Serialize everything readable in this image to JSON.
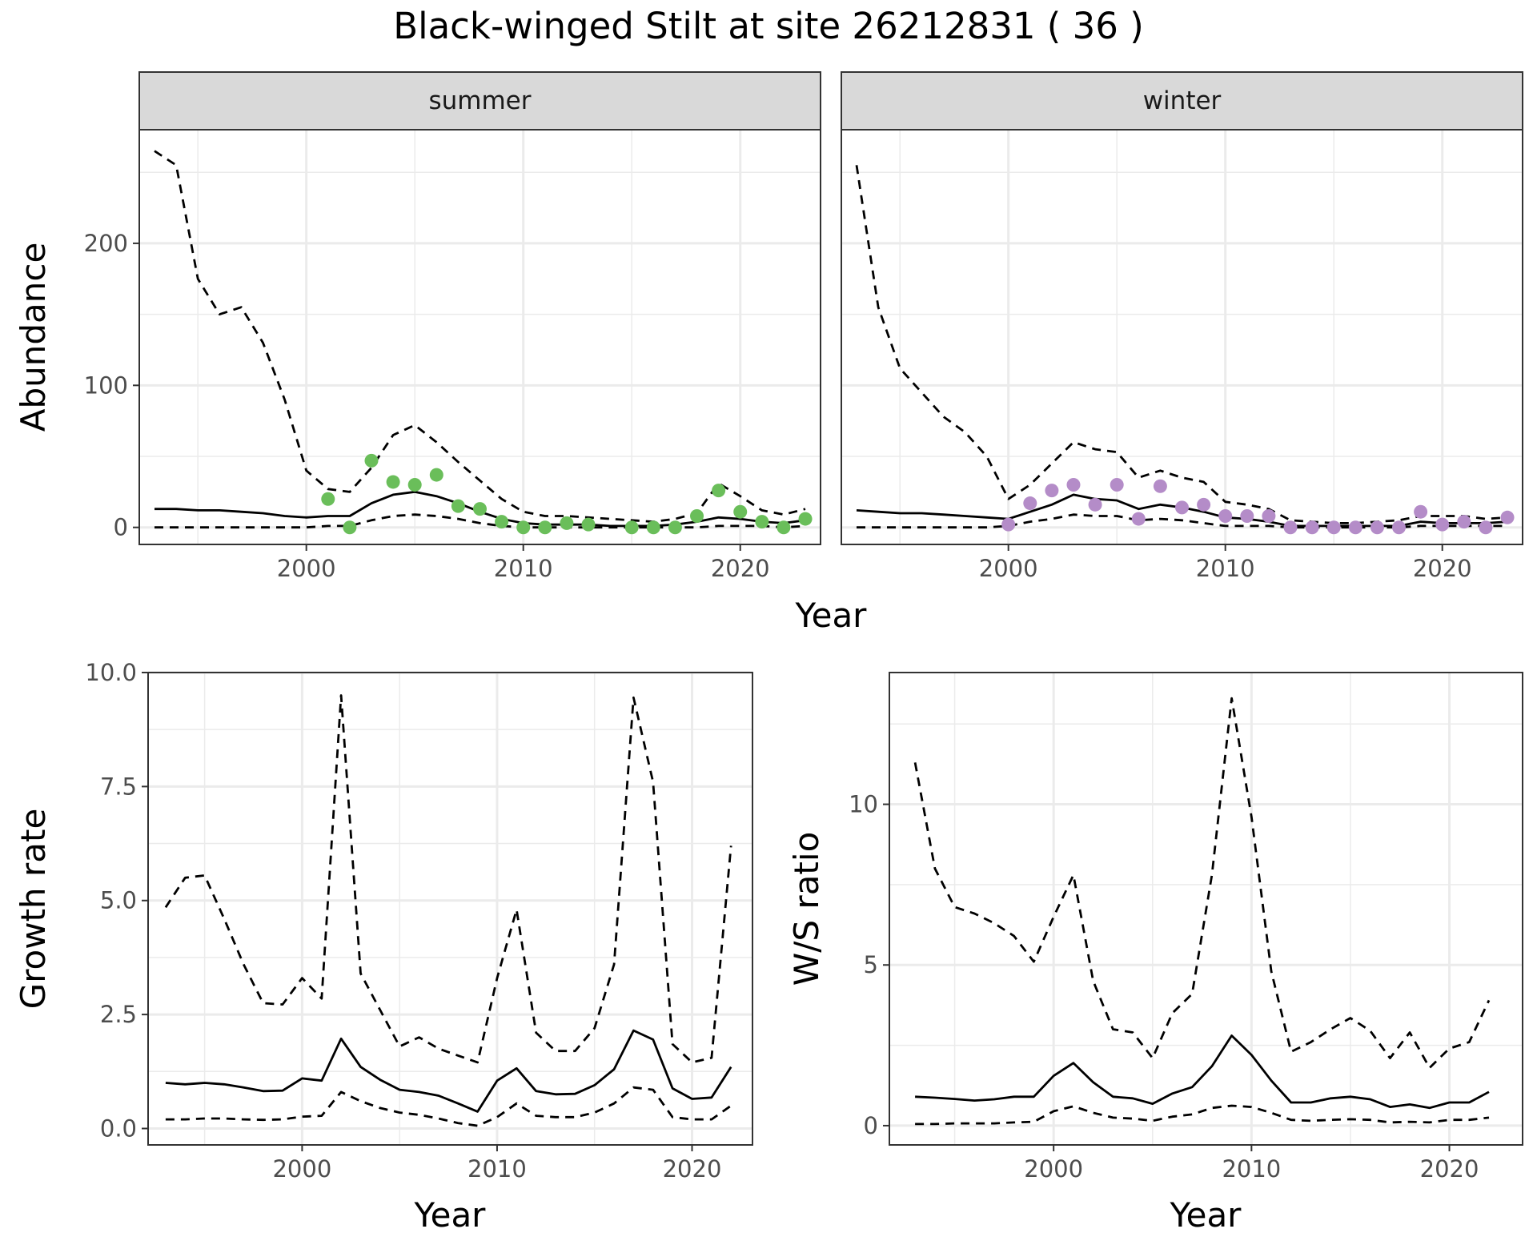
{
  "title": "Black-winged Stilt at site 26212831 ( 36 )",
  "colors": {
    "summer_points": "#6ABE5A",
    "winter_points": "#B48CC8",
    "line": "#000000",
    "strip": "#D9D9D9",
    "grid": "#EBEBEB"
  },
  "chart_data": [
    {
      "type": "line",
      "panel": "summer",
      "strip_label": "summer",
      "xlabel": "Year",
      "ylabel": "Abundance",
      "xlim": [
        1992.3,
        2023.7
      ],
      "ylim": [
        -12,
        280
      ],
      "xticks": [
        2000,
        2010,
        2020
      ],
      "yticks": [
        0,
        100,
        200
      ],
      "grid": true,
      "series": [
        {
          "role": "estimate",
          "style": "solid",
          "x": [
            1993,
            1994,
            1995,
            1996,
            1997,
            1998,
            1999,
            2000,
            2001,
            2002,
            2003,
            2004,
            2005,
            2006,
            2007,
            2008,
            2009,
            2010,
            2011,
            2012,
            2013,
            2014,
            2015,
            2016,
            2017,
            2018,
            2019,
            2020,
            2021,
            2022,
            2023
          ],
          "y": [
            13,
            13,
            12,
            12,
            11,
            10,
            8,
            7,
            8,
            8,
            17,
            23,
            25,
            22,
            17,
            11,
            6,
            3,
            2,
            2,
            2,
            1,
            1,
            1,
            2,
            4,
            7,
            6,
            4,
            3,
            5
          ]
        },
        {
          "role": "upper",
          "style": "dashed",
          "x": [
            1993,
            1994,
            1995,
            1996,
            1997,
            1998,
            1999,
            2000,
            2001,
            2002,
            2003,
            2004,
            2005,
            2006,
            2007,
            2008,
            2009,
            2010,
            2011,
            2012,
            2013,
            2014,
            2015,
            2016,
            2017,
            2018,
            2019,
            2020,
            2021,
            2022,
            2023
          ],
          "y": [
            265,
            255,
            175,
            150,
            155,
            130,
            90,
            40,
            27,
            25,
            42,
            65,
            72,
            60,
            46,
            33,
            20,
            11,
            8,
            8,
            7,
            6,
            5,
            4,
            6,
            10,
            31,
            22,
            12,
            9,
            13
          ]
        },
        {
          "role": "lower",
          "style": "dashed",
          "x": [
            1993,
            1994,
            1995,
            1996,
            1997,
            1998,
            1999,
            2000,
            2001,
            2002,
            2003,
            2004,
            2005,
            2006,
            2007,
            2008,
            2009,
            2010,
            2011,
            2012,
            2013,
            2014,
            2015,
            2016,
            2017,
            2018,
            2019,
            2020,
            2021,
            2022,
            2023
          ],
          "y": [
            0,
            0,
            0,
            0,
            0,
            0,
            0,
            0,
            1,
            1,
            5,
            8,
            9,
            8,
            6,
            3,
            1,
            0,
            0,
            0,
            0,
            0,
            0,
            0,
            0,
            0,
            1,
            1,
            1,
            0,
            1
          ]
        },
        {
          "role": "observed",
          "style": "points",
          "x": [
            2001,
            2002,
            2003,
            2004,
            2005,
            2006,
            2007,
            2008,
            2009,
            2010,
            2011,
            2012,
            2013,
            2015,
            2016,
            2017,
            2018,
            2019,
            2020,
            2021,
            2022,
            2023
          ],
          "y": [
            20,
            0,
            47,
            32,
            30,
            37,
            15,
            13,
            4,
            0,
            0,
            3,
            2,
            0,
            0,
            0,
            8,
            26,
            11,
            4,
            0,
            6
          ]
        }
      ]
    },
    {
      "type": "line",
      "panel": "winter",
      "strip_label": "winter",
      "xlabel": "Year",
      "ylabel": "Abundance",
      "xlim": [
        1992.3,
        2023.7
      ],
      "ylim": [
        -12,
        280
      ],
      "xticks": [
        2000,
        2010,
        2020
      ],
      "yticks": [
        0,
        100,
        200
      ],
      "grid": true,
      "series": [
        {
          "role": "estimate",
          "style": "solid",
          "x": [
            1993,
            1994,
            1995,
            1996,
            1997,
            1998,
            1999,
            2000,
            2001,
            2002,
            2003,
            2004,
            2005,
            2006,
            2007,
            2008,
            2009,
            2010,
            2011,
            2012,
            2013,
            2014,
            2015,
            2016,
            2017,
            2018,
            2019,
            2020,
            2021,
            2022,
            2023
          ],
          "y": [
            12,
            11,
            10,
            10,
            9,
            8,
            7,
            6,
            11,
            16,
            23,
            20,
            19,
            13,
            16,
            14,
            11,
            7,
            6,
            4,
            1,
            1,
            1,
            1,
            1,
            1,
            4,
            3,
            3,
            3,
            4
          ]
        },
        {
          "role": "upper",
          "style": "dashed",
          "x": [
            1993,
            1994,
            1995,
            1996,
            1997,
            1998,
            1999,
            2000,
            2001,
            2002,
            2003,
            2004,
            2005,
            2006,
            2007,
            2008,
            2009,
            2010,
            2011,
            2012,
            2013,
            2014,
            2015,
            2016,
            2017,
            2018,
            2019,
            2020,
            2021,
            2022,
            2023
          ],
          "y": [
            255,
            155,
            112,
            95,
            78,
            67,
            50,
            20,
            30,
            45,
            60,
            55,
            53,
            35,
            40,
            35,
            32,
            18,
            16,
            13,
            5,
            4,
            3,
            3,
            4,
            5,
            8,
            8,
            8,
            6,
            7
          ]
        },
        {
          "role": "lower",
          "style": "dashed",
          "x": [
            1993,
            1994,
            1995,
            1996,
            1997,
            1998,
            1999,
            2000,
            2001,
            2002,
            2003,
            2004,
            2005,
            2006,
            2007,
            2008,
            2009,
            2010,
            2011,
            2012,
            2013,
            2014,
            2015,
            2016,
            2017,
            2018,
            2019,
            2020,
            2021,
            2022,
            2023
          ],
          "y": [
            0,
            0,
            0,
            0,
            0,
            0,
            0,
            1,
            4,
            6,
            9,
            8,
            8,
            5,
            6,
            5,
            3,
            1,
            1,
            1,
            0,
            0,
            0,
            0,
            0,
            0,
            1,
            1,
            1,
            1,
            1
          ]
        },
        {
          "role": "observed",
          "style": "points",
          "x": [
            2000,
            2001,
            2002,
            2003,
            2004,
            2005,
            2006,
            2007,
            2008,
            2009,
            2010,
            2011,
            2012,
            2013,
            2014,
            2015,
            2016,
            2017,
            2018,
            2019,
            2020,
            2021,
            2022,
            2023
          ],
          "y": [
            2,
            17,
            26,
            30,
            16,
            30,
            6,
            29,
            14,
            16,
            8,
            8,
            8,
            0,
            0,
            0,
            0,
            0,
            0,
            11,
            2,
            4,
            0,
            7
          ]
        }
      ]
    },
    {
      "type": "line",
      "panel": "growth",
      "xlabel": "Year",
      "ylabel": "Growth rate",
      "xlim": [
        1992.1,
        2023.1
      ],
      "ylim": [
        -0.36,
        10.0
      ],
      "xticks": [
        2000,
        2010,
        2020
      ],
      "yticks": [
        0.0,
        2.5,
        5.0,
        7.5,
        10.0
      ],
      "ytick_labels": [
        "0.0",
        "2.5",
        "5.0",
        "7.5",
        "10.0"
      ],
      "grid": true,
      "series": [
        {
          "role": "estimate",
          "style": "solid",
          "x": [
            1993,
            1994,
            1995,
            1996,
            1997,
            1998,
            1999,
            2000,
            2001,
            2002,
            2003,
            2004,
            2005,
            2006,
            2007,
            2008,
            2009,
            2010,
            2011,
            2012,
            2013,
            2014,
            2015,
            2016,
            2017,
            2018,
            2019,
            2020,
            2021,
            2022
          ],
          "y": [
            1.0,
            0.97,
            1.0,
            0.97,
            0.9,
            0.82,
            0.83,
            1.1,
            1.05,
            1.97,
            1.35,
            1.07,
            0.85,
            0.8,
            0.72,
            0.55,
            0.37,
            1.05,
            1.32,
            0.82,
            0.75,
            0.76,
            0.95,
            1.3,
            2.15,
            1.95,
            0.88,
            0.65,
            0.68,
            1.35
          ]
        },
        {
          "role": "upper",
          "style": "dashed",
          "x": [
            1993,
            1994,
            1995,
            1996,
            1997,
            1998,
            1999,
            2000,
            2001,
            2002,
            2003,
            2004,
            2005,
            2006,
            2007,
            2008,
            2009,
            2010,
            2011,
            2012,
            2013,
            2014,
            2015,
            2016,
            2017,
            2018,
            2019,
            2020,
            2021,
            2022
          ],
          "y": [
            4.85,
            5.5,
            5.55,
            4.6,
            3.6,
            2.75,
            2.72,
            3.3,
            2.85,
            9.5,
            3.4,
            2.6,
            1.8,
            2.0,
            1.75,
            1.6,
            1.45,
            3.3,
            4.8,
            2.1,
            1.7,
            1.7,
            2.2,
            3.6,
            9.45,
            7.6,
            1.85,
            1.45,
            1.55,
            6.2
          ]
        },
        {
          "role": "lower",
          "style": "dashed",
          "x": [
            1993,
            1994,
            1995,
            1996,
            1997,
            1998,
            1999,
            2000,
            2001,
            2002,
            2003,
            2004,
            2005,
            2006,
            2007,
            2008,
            2009,
            2010,
            2011,
            2012,
            2013,
            2014,
            2015,
            2016,
            2017,
            2018,
            2019,
            2020,
            2021,
            2022
          ],
          "y": [
            0.2,
            0.2,
            0.22,
            0.22,
            0.2,
            0.19,
            0.2,
            0.26,
            0.28,
            0.8,
            0.6,
            0.45,
            0.35,
            0.3,
            0.22,
            0.12,
            0.06,
            0.25,
            0.55,
            0.28,
            0.25,
            0.25,
            0.35,
            0.55,
            0.9,
            0.85,
            0.25,
            0.2,
            0.2,
            0.5
          ]
        }
      ]
    },
    {
      "type": "line",
      "panel": "ratio",
      "xlabel": "Year",
      "ylabel": "W/S ratio",
      "xlim": [
        1991.7,
        2023.7
      ],
      "ylim": [
        -0.6,
        14.1
      ],
      "xticks": [
        2000,
        2010,
        2020
      ],
      "yticks": [
        0,
        5,
        10
      ],
      "grid": true,
      "series": [
        {
          "role": "estimate",
          "style": "solid",
          "x": [
            1993,
            1994,
            1995,
            1996,
            1997,
            1998,
            1999,
            2000,
            2001,
            2002,
            2003,
            2004,
            2005,
            2006,
            2007,
            2008,
            2009,
            2010,
            2011,
            2012,
            2013,
            2014,
            2015,
            2016,
            2017,
            2018,
            2019,
            2020,
            2021,
            2022
          ],
          "y": [
            0.9,
            0.87,
            0.83,
            0.78,
            0.82,
            0.9,
            0.9,
            1.55,
            1.95,
            1.35,
            0.9,
            0.85,
            0.68,
            1.0,
            1.2,
            1.85,
            2.8,
            2.2,
            1.4,
            0.72,
            0.72,
            0.85,
            0.9,
            0.82,
            0.58,
            0.66,
            0.55,
            0.72,
            0.72,
            1.05
          ]
        },
        {
          "role": "upper",
          "style": "dashed",
          "x": [
            1993,
            1994,
            1995,
            1996,
            1997,
            1998,
            1999,
            2000,
            2001,
            2002,
            2003,
            2004,
            2005,
            2006,
            2007,
            2008,
            2009,
            2010,
            2011,
            2012,
            2013,
            2014,
            2015,
            2016,
            2017,
            2018,
            2019,
            2020,
            2021,
            2022
          ],
          "y": [
            11.3,
            8.0,
            6.8,
            6.6,
            6.3,
            5.9,
            5.1,
            6.5,
            7.8,
            4.5,
            3.0,
            2.9,
            2.1,
            3.5,
            4.1,
            7.8,
            13.3,
            9.6,
            4.8,
            2.3,
            2.6,
            3.0,
            3.35,
            2.95,
            2.1,
            2.9,
            1.8,
            2.4,
            2.6,
            3.9
          ]
        },
        {
          "role": "lower",
          "style": "dashed",
          "x": [
            1993,
            1994,
            1995,
            1996,
            1997,
            1998,
            1999,
            2000,
            2001,
            2002,
            2003,
            2004,
            2005,
            2006,
            2007,
            2008,
            2009,
            2010,
            2011,
            2012,
            2013,
            2014,
            2015,
            2016,
            2017,
            2018,
            2019,
            2020,
            2021,
            2022
          ],
          "y": [
            0.05,
            0.05,
            0.07,
            0.07,
            0.07,
            0.1,
            0.12,
            0.45,
            0.6,
            0.4,
            0.25,
            0.22,
            0.15,
            0.28,
            0.35,
            0.55,
            0.62,
            0.58,
            0.4,
            0.18,
            0.15,
            0.18,
            0.2,
            0.18,
            0.1,
            0.12,
            0.1,
            0.18,
            0.18,
            0.25
          ]
        }
      ]
    }
  ]
}
